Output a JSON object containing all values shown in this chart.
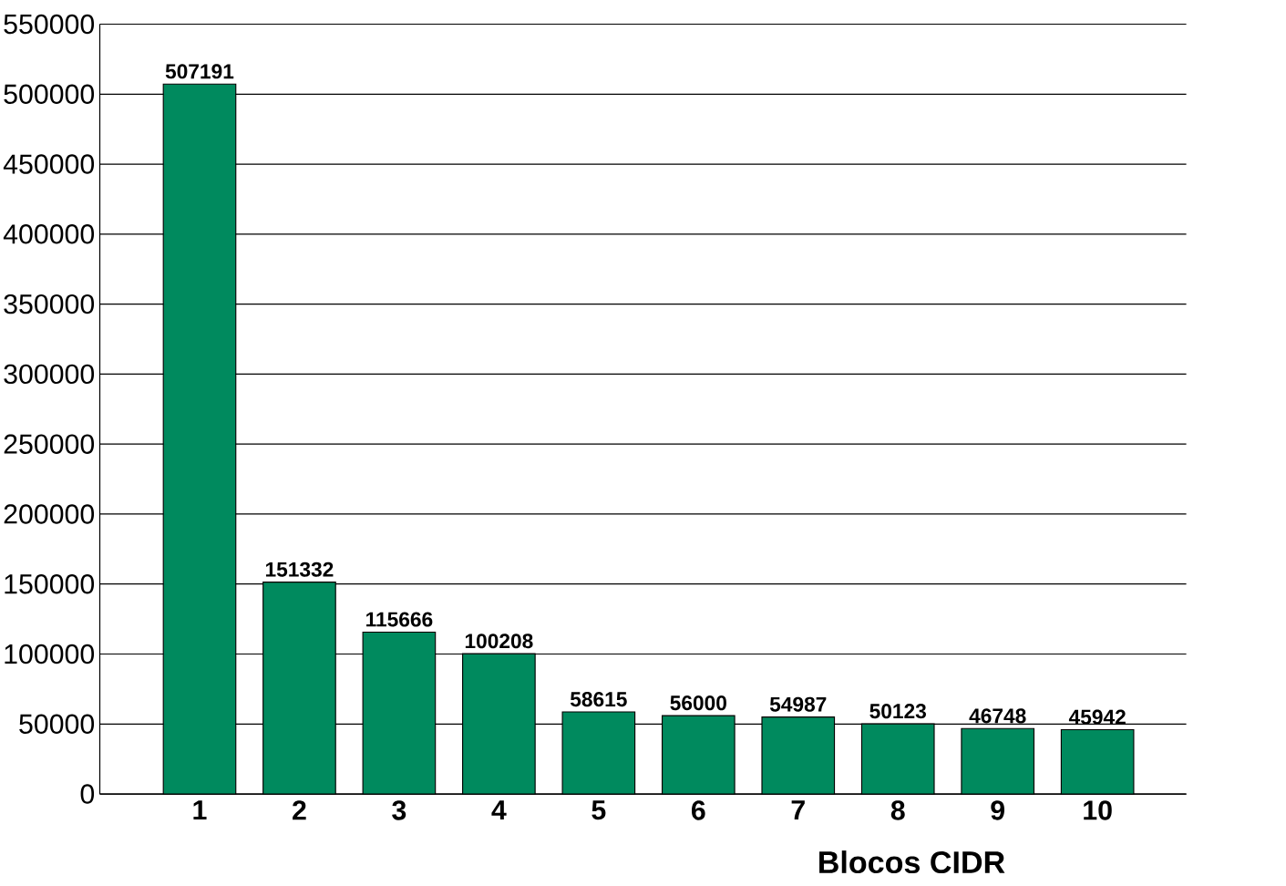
{
  "chart_data": {
    "type": "bar",
    "xlabel": "Blocos CIDR",
    "categories": [
      "1",
      "2",
      "3",
      "4",
      "5",
      "6",
      "7",
      "8",
      "9",
      "10"
    ],
    "values": [
      507191,
      151332,
      115666,
      100208,
      58615,
      56000,
      54987,
      50123,
      46748,
      45942
    ],
    "color": "#008a5e",
    "data_labels": true,
    "grid": "y",
    "ylim": [
      0,
      550000
    ],
    "yticks": [
      0,
      50000,
      100000,
      150000,
      200000,
      250000,
      300000,
      350000,
      400000,
      450000,
      500000,
      550000
    ]
  }
}
